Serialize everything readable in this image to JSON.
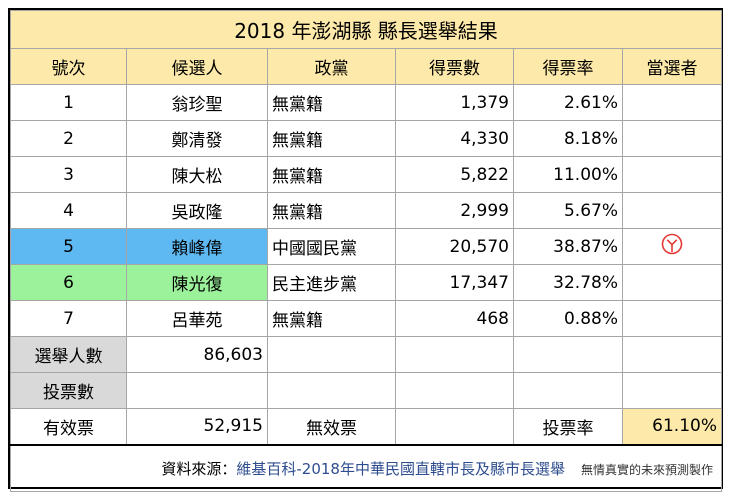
{
  "title": "2018 年澎湖縣 縣長選舉結果",
  "headers": [
    "號次",
    "候選人",
    "政黨",
    "得票數",
    "得票率",
    "當選者"
  ],
  "candidates": [
    {
      "no": "1",
      "name": "翁珍聖",
      "party": "無黨籍",
      "votes": "1,379",
      "pct": "2.61%",
      "elected": false
    },
    {
      "no": "2",
      "name": "鄭清發",
      "party": "無黨籍",
      "votes": "4,330",
      "pct": "8.18%",
      "elected": false
    },
    {
      "no": "3",
      "name": "陳大松",
      "party": "無黨籍",
      "votes": "5,822",
      "pct": "11.00%",
      "elected": false
    },
    {
      "no": "4",
      "name": "吳政隆",
      "party": "無黨籍",
      "votes": "2,999",
      "pct": "5.67%",
      "elected": false
    },
    {
      "no": "5",
      "name": "賴峰偉",
      "party": "中國國民黨",
      "votes": "20,570",
      "pct": "38.87%",
      "elected": true
    },
    {
      "no": "6",
      "name": "陳光復",
      "party": "民主進步黨",
      "votes": "17,347",
      "pct": "32.78%",
      "elected": false
    },
    {
      "no": "7",
      "name": "呂華苑",
      "party": "無黨籍",
      "votes": "468",
      "pct": "0.88%",
      "elected": false
    }
  ],
  "highlight": {
    "kmt": "#5eb8f2",
    "dpp": "#9cf29a"
  },
  "electorate": {
    "label": "選舉人數",
    "value": "86,603"
  },
  "ballots": {
    "label": "投票數",
    "value": ""
  },
  "valid": {
    "label": "有效票",
    "value": "52,915"
  },
  "invalid": {
    "label": "無效票",
    "value": ""
  },
  "turnout": {
    "label": "投票率",
    "value": "61.10%"
  },
  "source": {
    "label": "資料來源：",
    "link": "維基百科-2018年中華民國直轄市長及縣市長選舉",
    "note": "無情真實的未來預測製作"
  },
  "icons": {
    "elected_mark": "elected-stamp-icon"
  }
}
